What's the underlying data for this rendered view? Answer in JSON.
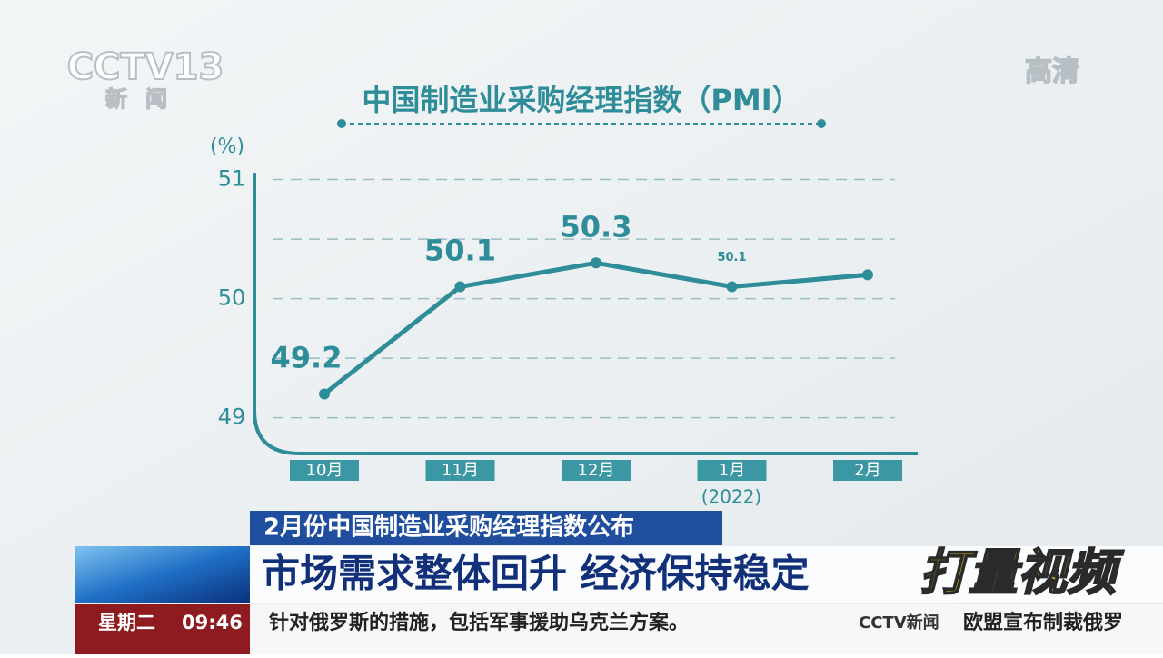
{
  "chart_data": {
    "type": "line",
    "title": "中国制造业采购经理指数（PMI）",
    "y_unit": "(%)",
    "categories": [
      "10月",
      "11月",
      "12月",
      "1月",
      "2月"
    ],
    "x_note": "(2022)",
    "values": [
      49.2,
      50.1,
      50.3,
      50.1,
      50.2
    ],
    "value_labels": [
      "49.2",
      "50.1",
      "50.3",
      "50.1",
      null
    ],
    "color": "#2f8c99",
    "ylim": [
      48.7,
      51.05
    ],
    "yticks": [
      49,
      50,
      51
    ],
    "grid_lines": [
      49,
      49.5,
      50,
      50.5,
      51
    ],
    "grid": true
  },
  "channel": {
    "logo": "CCTV13",
    "name": "新闻",
    "quality": "高清"
  },
  "news": {
    "subtitle": "2月份中国制造业采购经理指数公布",
    "headline": "市场需求整体回升 经济保持稳定",
    "brand": "打量视频",
    "weekday": "星期二",
    "time": "09:46",
    "ticker": "针对俄罗斯的措施，包括军事援助乌克兰方案。",
    "ticker_logo": "CCTV新闻",
    "ticker_next": "欧盟宣布制裁俄罗"
  }
}
